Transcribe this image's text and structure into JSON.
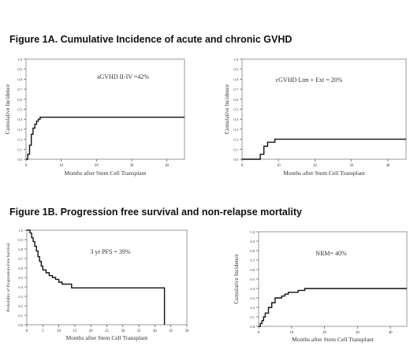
{
  "figure_titles": {
    "a": "Figure 1A. Cumulative Incidence of acute and chronic GVHD",
    "b": "Figure 1B. Progression free survival and non-relapse mortality"
  },
  "chart_data": [
    {
      "type": "line",
      "title": "",
      "annotation": "aGVHD II-IV =42%",
      "xlabel": "Months after Stem Cell Transplant",
      "ylabel": "Cumulative Incidence",
      "xlim": [
        0,
        45
      ],
      "ylim": [
        0,
        1
      ],
      "xticks": [
        0,
        10,
        20,
        30,
        40
      ],
      "yticks": [
        0,
        0.1,
        0.2,
        0.3,
        0.4,
        0.5,
        0.6,
        0.7,
        0.8,
        0.9,
        1.0
      ],
      "grid": false,
      "series": [
        {
          "x": [
            0,
            0.5,
            1,
            1.5,
            2,
            2.5,
            3,
            3.5,
            4,
            45
          ],
          "y": [
            0,
            0.05,
            0.14,
            0.25,
            0.31,
            0.35,
            0.38,
            0.4,
            0.42,
            0.42
          ],
          "step": true
        }
      ]
    },
    {
      "type": "line",
      "title": "",
      "annotation": "cGVHD Lim + Ext = 20%",
      "xlabel": "Months after Stem Cell Transplant",
      "ylabel": "Cumulative Incidence",
      "xlim": [
        0,
        45
      ],
      "ylim": [
        0,
        1
      ],
      "xticks": [
        0,
        10,
        20,
        30,
        40
      ],
      "yticks": [
        0,
        0.1,
        0.2,
        0.3,
        0.4,
        0.5,
        0.6,
        0.7,
        0.8,
        0.9,
        1.0
      ],
      "grid": false,
      "series": [
        {
          "x": [
            0,
            5,
            6,
            7,
            9,
            45
          ],
          "y": [
            0,
            0.05,
            0.13,
            0.17,
            0.2,
            0.2
          ],
          "step": true
        }
      ]
    },
    {
      "type": "line",
      "title": "",
      "annotation": "3 yr PFS = 39%",
      "xlabel": "Months after Stem Cell Transplant",
      "ylabel": "Probability of Progression-Free Survival",
      "xlim": [
        0,
        50
      ],
      "ylim": [
        0,
        1
      ],
      "xticks": [
        0,
        5,
        10,
        15,
        20,
        25,
        30,
        35,
        40,
        45,
        50
      ],
      "yticks": [
        0,
        0.1,
        0.2,
        0.3,
        0.4,
        0.5,
        0.6,
        0.7,
        0.8,
        0.9,
        1.0
      ],
      "grid": false,
      "series": [
        {
          "x": [
            0,
            1,
            1.5,
            2,
            2.5,
            3,
            3.5,
            4,
            4.5,
            5,
            6,
            7,
            8,
            9,
            10,
            11,
            14,
            43,
            43
          ],
          "y": [
            1.0,
            0.97,
            0.92,
            0.88,
            0.83,
            0.78,
            0.72,
            0.67,
            0.62,
            0.58,
            0.55,
            0.52,
            0.5,
            0.48,
            0.45,
            0.43,
            0.39,
            0.39,
            0
          ],
          "step": true
        }
      ]
    },
    {
      "type": "line",
      "title": "",
      "annotation": "NRM= 40%",
      "xlabel": "Months after Stem Cell Transplant",
      "ylabel": "Cumulative Incidence",
      "xlim": [
        0,
        45
      ],
      "ylim": [
        0,
        1
      ],
      "xticks": [
        0,
        10,
        20,
        30,
        40
      ],
      "yticks": [
        0,
        0.1,
        0.2,
        0.3,
        0.4,
        0.5,
        0.6,
        0.7,
        0.8,
        0.9,
        1.0
      ],
      "grid": false,
      "series": [
        {
          "x": [
            0,
            0.5,
            1,
            1.5,
            2,
            3,
            4,
            5,
            7,
            8,
            9,
            12,
            14,
            45
          ],
          "y": [
            0,
            0.03,
            0.06,
            0.1,
            0.14,
            0.2,
            0.25,
            0.3,
            0.32,
            0.34,
            0.36,
            0.38,
            0.4,
            0.4
          ],
          "step": true
        }
      ]
    }
  ]
}
